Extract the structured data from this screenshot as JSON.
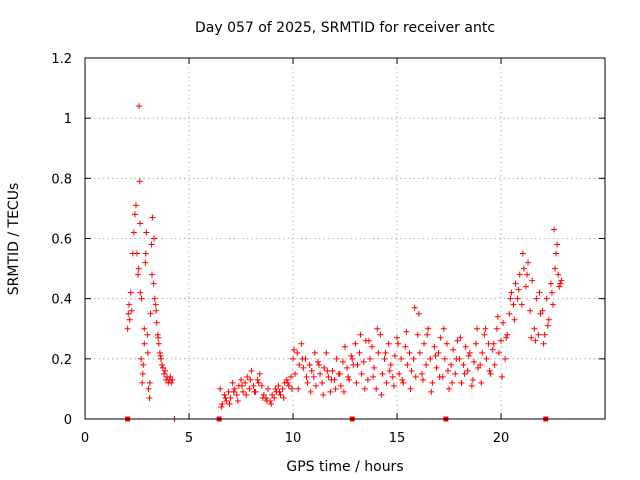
{
  "chart_data": {
    "type": "scatter",
    "title": "Day 057 of 2025, SRMTID for receiver antc",
    "xlabel": "GPS time / hours",
    "ylabel": "SRMTID / TECUs",
    "xlim": [
      0,
      25
    ],
    "ylim": [
      0,
      1.2
    ],
    "xticks": [
      0,
      5,
      10,
      15,
      20
    ],
    "xtick_labels": [
      "0",
      "5",
      "10",
      "15",
      "20"
    ],
    "yticks": [
      0,
      0.2,
      0.4,
      0.6,
      0.8,
      1.0,
      1.2
    ],
    "ytick_labels": [
      "0",
      "0.2",
      "0.4",
      "0.6",
      "0.8",
      "1",
      "1.2"
    ],
    "grid": true,
    "colors": {
      "points": "#ff0000",
      "markers": "#ff0000",
      "grid": "#a0a0a0",
      "frame": "#000000"
    },
    "zero_markers": {
      "style": "square",
      "x": [
        2.05,
        6.45,
        12.85,
        17.35,
        22.15
      ]
    },
    "series": [
      {
        "name": "SRMTID",
        "marker": "plus",
        "x": [
          2.05,
          2.08,
          2.12,
          2.15,
          2.2,
          2.25,
          2.3,
          2.35,
          2.4,
          2.45,
          2.5,
          2.55,
          2.6,
          2.63,
          2.66,
          2.7,
          2.75,
          2.8,
          2.85,
          2.9,
          2.95,
          3.0,
          3.05,
          3.1,
          3.15,
          3.2,
          3.25,
          3.3,
          3.35,
          3.4,
          3.45,
          3.5,
          3.55,
          3.6,
          3.65,
          3.7,
          3.8,
          3.9,
          4.0,
          4.1,
          4.2,
          4.3,
          2.58,
          2.65,
          2.72,
          2.78,
          2.85,
          2.92,
          3.02,
          3.12,
          3.22,
          3.32,
          3.42,
          3.52,
          3.62,
          3.75,
          3.85,
          3.95,
          4.05,
          4.15,
          6.5,
          6.6,
          6.7,
          6.8,
          6.9,
          7.0,
          7.1,
          7.2,
          7.3,
          7.4,
          7.5,
          7.6,
          7.7,
          7.8,
          7.9,
          8.0,
          8.1,
          8.2,
          8.3,
          8.4,
          8.5,
          8.6,
          8.7,
          8.8,
          8.9,
          9.0,
          9.1,
          9.2,
          9.3,
          9.4,
          9.5,
          9.6,
          9.7,
          9.8,
          9.9,
          6.55,
          6.75,
          6.95,
          7.15,
          7.35,
          7.55,
          7.75,
          7.95,
          8.15,
          8.35,
          8.55,
          8.75,
          8.95,
          9.15,
          9.35,
          9.55,
          9.75,
          9.95,
          10.0,
          10.1,
          10.2,
          10.3,
          10.4,
          10.5,
          10.6,
          10.7,
          10.8,
          10.9,
          11.0,
          11.1,
          11.2,
          11.3,
          11.4,
          11.5,
          11.6,
          11.7,
          11.8,
          11.9,
          12.0,
          12.1,
          12.2,
          12.3,
          12.4,
          12.5,
          12.6,
          12.7,
          12.8,
          12.9,
          10.05,
          10.25,
          10.45,
          10.65,
          10.85,
          11.05,
          11.25,
          11.45,
          11.65,
          11.85,
          12.05,
          12.25,
          12.45,
          12.65,
          12.85,
          13.0,
          13.1,
          13.2,
          13.3,
          13.4,
          13.5,
          13.6,
          13.7,
          13.8,
          13.9,
          14.0,
          14.1,
          14.2,
          14.3,
          14.4,
          14.5,
          14.6,
          14.7,
          14.8,
          14.9,
          15.0,
          15.1,
          15.2,
          15.3,
          15.4,
          15.5,
          15.6,
          15.7,
          15.8,
          15.9,
          13.05,
          13.25,
          13.45,
          13.65,
          13.85,
          14.05,
          14.25,
          14.45,
          14.65,
          14.85,
          15.05,
          15.25,
          15.45,
          15.65,
          15.85,
          16.0,
          16.1,
          16.2,
          16.3,
          16.4,
          16.5,
          16.6,
          16.7,
          16.8,
          16.9,
          17.0,
          17.1,
          17.2,
          17.3,
          17.4,
          17.5,
          17.6,
          17.7,
          17.8,
          17.9,
          18.0,
          18.1,
          18.2,
          18.3,
          18.4,
          18.5,
          18.6,
          18.7,
          18.8,
          18.9,
          16.05,
          16.25,
          16.45,
          16.65,
          16.85,
          17.05,
          17.25,
          17.45,
          17.65,
          17.85,
          18.05,
          18.25,
          18.45,
          18.65,
          18.85,
          19.0,
          19.1,
          19.2,
          19.3,
          19.4,
          19.5,
          19.6,
          19.7,
          19.8,
          19.9,
          20.0,
          20.1,
          20.2,
          20.3,
          20.4,
          20.5,
          20.6,
          20.7,
          20.8,
          20.9,
          21.0,
          21.1,
          21.2,
          21.3,
          21.4,
          21.5,
          21.6,
          21.7,
          21.8,
          21.9,
          19.05,
          19.25,
          19.45,
          19.65,
          19.85,
          20.05,
          20.25,
          20.45,
          20.65,
          20.85,
          21.05,
          21.25,
          21.45,
          21.65,
          21.85,
          22.0,
          22.1,
          22.2,
          22.3,
          22.4,
          22.5,
          22.6,
          22.7,
          22.8,
          22.9,
          22.05,
          22.25,
          22.45,
          22.55,
          22.65,
          22.75,
          22.85
        ],
        "y": [
          0.3,
          0.35,
          0.38,
          0.33,
          0.42,
          0.36,
          0.55,
          0.62,
          0.68,
          0.71,
          0.55,
          0.48,
          1.04,
          0.79,
          0.42,
          0.2,
          0.12,
          0.18,
          0.25,
          0.52,
          0.62,
          0.28,
          0.1,
          0.07,
          0.35,
          0.58,
          0.67,
          0.45,
          0.4,
          0.38,
          0.32,
          0.28,
          0.25,
          0.22,
          0.2,
          0.18,
          0.15,
          0.13,
          0.12,
          0.14,
          0.13,
          0.0,
          0.5,
          0.65,
          0.4,
          0.15,
          0.3,
          0.55,
          0.22,
          0.12,
          0.48,
          0.6,
          0.36,
          0.27,
          0.21,
          0.17,
          0.16,
          0.14,
          0.13,
          0.12,
          0.1,
          0.05,
          0.08,
          0.06,
          0.09,
          0.07,
          0.12,
          0.1,
          0.08,
          0.11,
          0.13,
          0.09,
          0.12,
          0.14,
          0.1,
          0.16,
          0.11,
          0.09,
          0.13,
          0.15,
          0.11,
          0.08,
          0.07,
          0.1,
          0.06,
          0.08,
          0.07,
          0.09,
          0.11,
          0.08,
          0.1,
          0.12,
          0.13,
          0.11,
          0.14,
          0.04,
          0.07,
          0.05,
          0.09,
          0.06,
          0.11,
          0.08,
          0.13,
          0.09,
          0.12,
          0.07,
          0.06,
          0.05,
          0.1,
          0.09,
          0.07,
          0.12,
          0.1,
          0.2,
          0.15,
          0.22,
          0.18,
          0.25,
          0.17,
          0.2,
          0.12,
          0.18,
          0.16,
          0.14,
          0.11,
          0.19,
          0.15,
          0.12,
          0.17,
          0.22,
          0.14,
          0.09,
          0.16,
          0.13,
          0.2,
          0.15,
          0.11,
          0.19,
          0.24,
          0.17,
          0.13,
          0.21,
          0.18,
          0.23,
          0.1,
          0.2,
          0.14,
          0.09,
          0.22,
          0.18,
          0.08,
          0.16,
          0.13,
          0.1,
          0.15,
          0.09,
          0.14,
          0.2,
          0.25,
          0.18,
          0.22,
          0.15,
          0.19,
          0.26,
          0.13,
          0.2,
          0.24,
          0.17,
          0.1,
          0.22,
          0.28,
          0.15,
          0.2,
          0.12,
          0.25,
          0.18,
          0.14,
          0.21,
          0.27,
          0.15,
          0.2,
          0.12,
          0.24,
          0.18,
          0.22,
          0.16,
          0.2,
          0.14,
          0.12,
          0.28,
          0.1,
          0.26,
          0.14,
          0.3,
          0.08,
          0.22,
          0.16,
          0.11,
          0.25,
          0.13,
          0.29,
          0.1,
          0.37,
          0.28,
          0.22,
          0.15,
          0.25,
          0.18,
          0.3,
          0.2,
          0.12,
          0.24,
          0.17,
          0.22,
          0.27,
          0.14,
          0.2,
          0.25,
          0.1,
          0.18,
          0.23,
          0.15,
          0.26,
          0.2,
          0.12,
          0.18,
          0.24,
          0.16,
          0.22,
          0.11,
          0.19,
          0.25,
          0.17,
          0.35,
          0.13,
          0.28,
          0.09,
          0.21,
          0.14,
          0.3,
          0.16,
          0.12,
          0.2,
          0.27,
          0.15,
          0.21,
          0.13,
          0.3,
          0.18,
          0.22,
          0.28,
          0.2,
          0.25,
          0.15,
          0.23,
          0.18,
          0.3,
          0.22,
          0.26,
          0.32,
          0.2,
          0.28,
          0.35,
          0.42,
          0.38,
          0.45,
          0.4,
          0.48,
          0.38,
          0.5,
          0.44,
          0.52,
          0.36,
          0.46,
          0.3,
          0.4,
          0.28,
          0.35,
          0.12,
          0.3,
          0.16,
          0.25,
          0.34,
          0.14,
          0.27,
          0.4,
          0.33,
          0.43,
          0.55,
          0.48,
          0.27,
          0.26,
          0.42,
          0.36,
          0.28,
          0.4,
          0.33,
          0.45,
          0.38,
          0.5,
          0.58,
          0.44,
          0.46,
          0.25,
          0.31,
          0.42,
          0.63,
          0.55,
          0.48,
          0.45
        ]
      }
    ]
  }
}
